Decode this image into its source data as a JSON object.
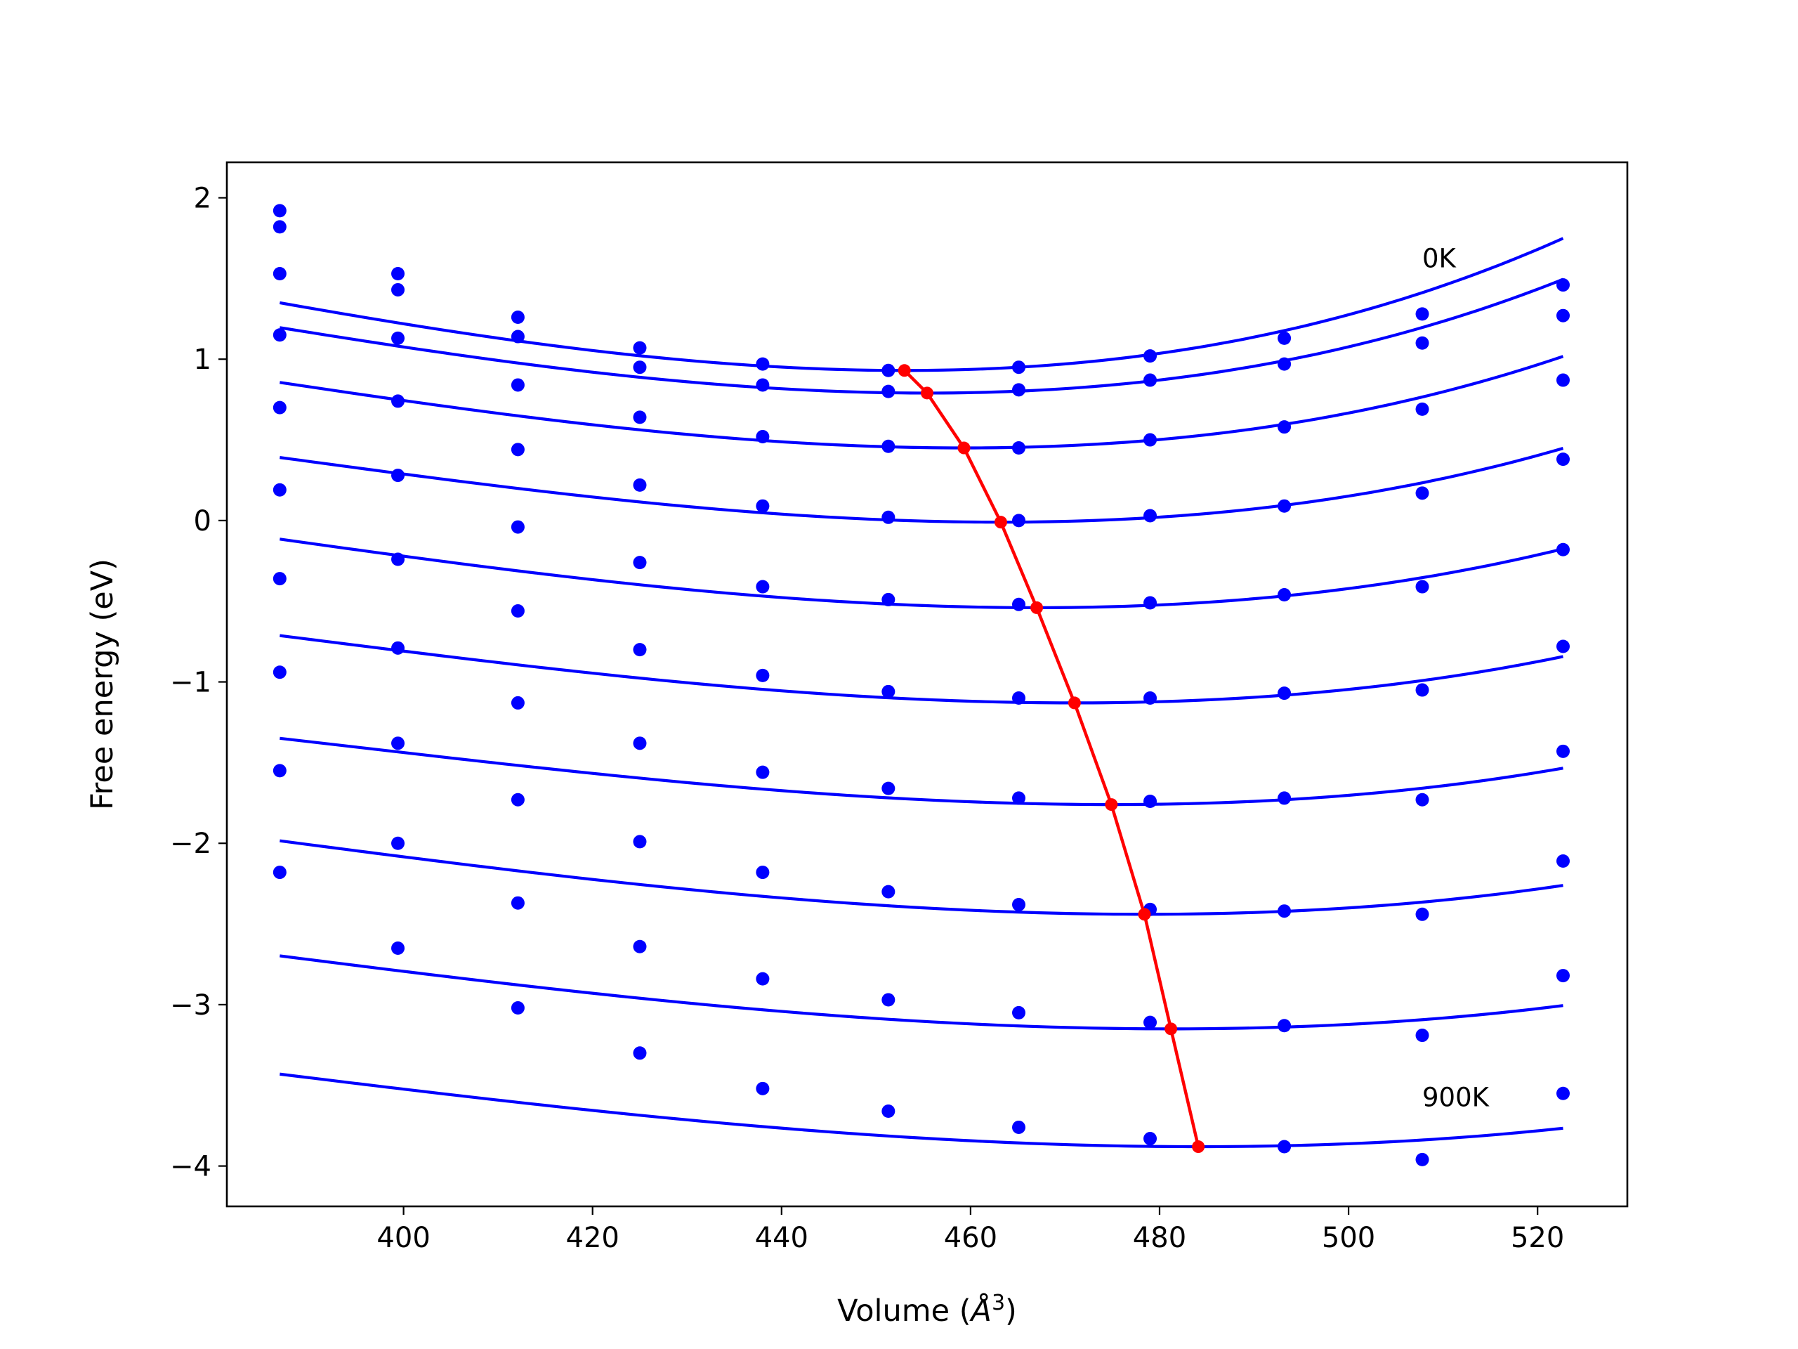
{
  "chart_data": {
    "type": "line",
    "title": "",
    "xlabel": "Volume (",
    "xlabel_symbol": "Å",
    "xlabel_exponent": "3",
    "xlabel_close": ")",
    "ylabel": "Free energy (eV)",
    "xlim": [
      381.3,
      529.5
    ],
    "ylim": [
      -4.25,
      2.22
    ],
    "xticks": [
      400,
      420,
      440,
      460,
      480,
      500,
      520
    ],
    "xtick_labels": [
      "400",
      "420",
      "440",
      "460",
      "480",
      "500",
      "520"
    ],
    "yticks": [
      -4,
      -3,
      -2,
      -1,
      0,
      1,
      2
    ],
    "ytick_labels": [
      "−4",
      "−3",
      "−2",
      "−1",
      "0",
      "1",
      "2"
    ],
    "grid": false,
    "fit_color": "#0000ff",
    "point_color": "#0000ff",
    "minima_color": "#ff0000",
    "volumes": [
      386.9,
      399.4,
      412.1,
      425.0,
      438.0,
      451.3,
      465.1,
      479.0,
      493.2,
      507.8,
      522.7
    ],
    "series": [
      {
        "label": "0K",
        "energies": [
          1.92,
          1.53,
          1.26,
          1.07,
          0.97,
          0.93,
          0.95,
          1.02,
          1.13,
          1.28,
          1.46
        ],
        "fit": {
          "vmin": 453.0,
          "emin": 0.93,
          "a": 0.0001313,
          "b": 5.34e-07
        }
      },
      {
        "label": "",
        "energies": [
          1.82,
          1.43,
          1.14,
          0.95,
          0.84,
          0.8,
          0.81,
          0.87,
          0.97,
          1.1,
          1.27
        ],
        "fit": {
          "vmin": 455.4,
          "emin": 0.79,
          "a": 0.0001213,
          "b": 5.09e-07
        }
      },
      {
        "label": "",
        "energies": [
          1.53,
          1.13,
          0.84,
          0.64,
          0.52,
          0.46,
          0.45,
          0.5,
          0.58,
          0.69,
          0.87
        ],
        "fit": {
          "vmin": 459.3,
          "emin": 0.45,
          "a": 0.0001114,
          "b": 4.69e-07
        }
      },
      {
        "label": "",
        "energies": [
          1.15,
          0.74,
          0.44,
          0.22,
          0.09,
          0.02,
          0.0,
          0.03,
          0.09,
          0.17,
          0.38
        ],
        "fit": {
          "vmin": 463.2,
          "emin": -0.01,
          "a": 0.0001028,
          "b": 4.45e-07
        }
      },
      {
        "label": "",
        "energies": [
          0.7,
          0.28,
          -0.04,
          -0.26,
          -0.41,
          -0.49,
          -0.52,
          -0.51,
          -0.46,
          -0.41,
          -0.18
        ],
        "fit": {
          "vmin": 467.0,
          "emin": -0.54,
          "a": 9.64e-05,
          "b": 3.77e-07
        }
      },
      {
        "label": "",
        "energies": [
          0.19,
          -0.24,
          -0.56,
          -0.8,
          -0.96,
          -1.06,
          -1.1,
          -1.1,
          -1.07,
          -1.05,
          -0.78
        ],
        "fit": {
          "vmin": 471.0,
          "emin": -1.13,
          "a": 8.9e-05,
          "b": 3.57e-07
        }
      },
      {
        "label": "",
        "energies": [
          -0.36,
          -0.79,
          -1.13,
          -1.38,
          -1.56,
          -1.66,
          -1.72,
          -1.74,
          -1.72,
          -1.73,
          -1.43
        ],
        "fit": {
          "vmin": 474.9,
          "emin": -1.76,
          "a": 8.26e-05,
          "b": 3.36e-07
        }
      },
      {
        "label": "",
        "energies": [
          -0.94,
          -1.38,
          -1.73,
          -1.99,
          -2.18,
          -2.3,
          -2.38,
          -2.41,
          -2.42,
          -2.44,
          -2.11
        ],
        "fit": {
          "vmin": 478.4,
          "emin": -2.44,
          "a": 7.92e-05,
          "b": 2.71e-07
        }
      },
      {
        "label": "",
        "energies": [
          -1.55,
          -2.0,
          -2.37,
          -2.64,
          -2.84,
          -2.97,
          -3.05,
          -3.11,
          -3.13,
          -3.19,
          -2.82
        ],
        "fit": {
          "vmin": 481.2,
          "emin": -3.15,
          "a": 7.38e-05,
          "b": 2.43e-07
        }
      },
      {
        "label": "900K",
        "energies": [
          -2.18,
          -2.65,
          -3.02,
          -3.3,
          -3.52,
          -3.66,
          -3.76,
          -3.83,
          -3.88,
          -3.96,
          -3.55
        ],
        "fit": {
          "vmin": 484.1,
          "emin": -3.88,
          "a": 6.84e-05,
          "b": 2.14e-07
        }
      }
    ],
    "minima": {
      "x": [
        453.0,
        455.4,
        459.3,
        463.2,
        467.0,
        471.0,
        474.9,
        478.4,
        481.2,
        484.1
      ],
      "y": [
        0.93,
        0.79,
        0.45,
        -0.01,
        -0.54,
        -1.13,
        -1.76,
        -2.44,
        -3.15,
        -3.88
      ]
    }
  }
}
